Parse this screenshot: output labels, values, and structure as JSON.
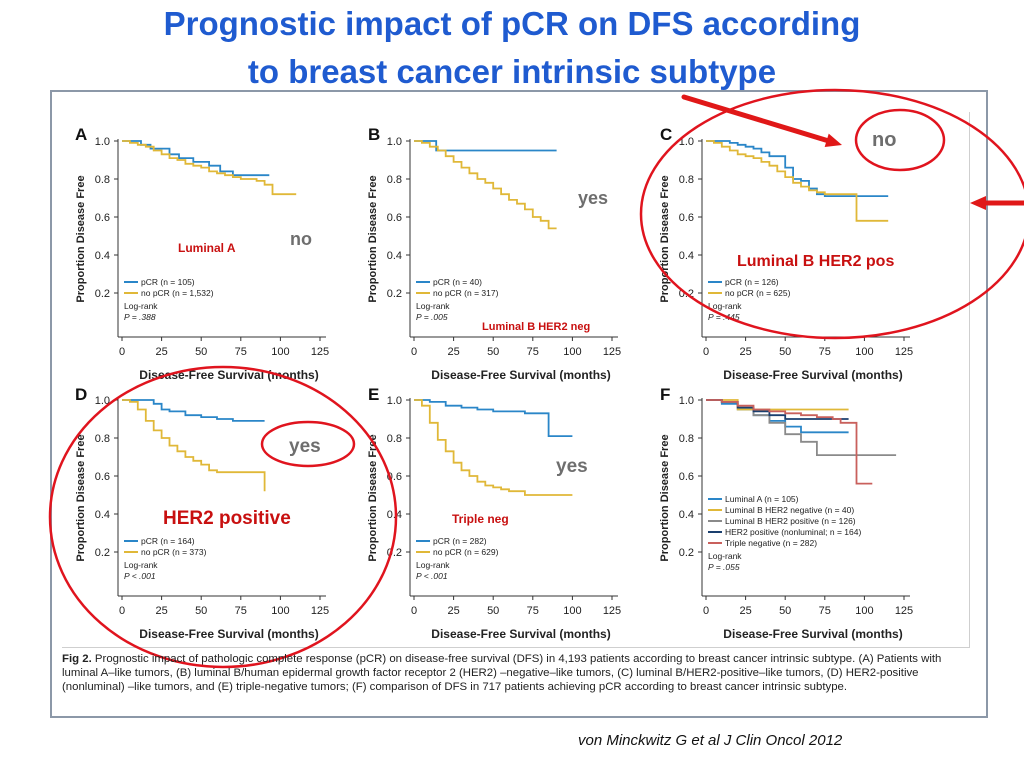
{
  "slide": {
    "title_line1": "Prognostic impact of pCR on DFS according",
    "title_line2": "to breast cancer intrinsic subtype",
    "credit": "von Minckwitz G et al J Clin Oncol 2012",
    "caption_label": "Fig 2.",
    "caption_text": "Prognostic impact of pathologic complete response (pCR) on disease-free survival (DFS) in 4,193 patients according to breast cancer intrinsic subtype. (A) Patients with luminal A–like tumors, (B) luminal B/human epidermal growth factor receptor 2 (HER2) –negative–like tumors, (C) luminal B/HER2-positive–like tumors, (D) HER2-positive (nonluminal) –like tumors, and (E) triple-negative tumors; (F) comparison of DFS in 717 patients achieving pCR according to breast cancer intrinsic subtype."
  },
  "colors": {
    "title": "#1f5bd0",
    "pcr": "#2a86c8",
    "no_pcr": "#e0b838",
    "annotation_red": "#e0141e",
    "subtype_label_red": "#c81010",
    "note_gray": "#6e6e6e",
    "frame": "#8c98a8"
  },
  "chart_data": [
    {
      "panel": "A",
      "type": "line",
      "ylabel": "Proportion Disease Free",
      "xlabel": "Disease-Free Survival (months)",
      "xlim": [
        0,
        125
      ],
      "ylim": [
        0,
        1.0
      ],
      "xticks": [
        0,
        25,
        50,
        75,
        100,
        125
      ],
      "yticks": [
        0.2,
        0.4,
        0.6,
        0.8,
        1.0
      ],
      "series": [
        {
          "name": "pCR (n = 105)",
          "color": "pcr",
          "x": [
            0,
            5,
            12,
            18,
            22,
            30,
            36,
            45,
            55,
            62,
            70,
            80,
            93
          ],
          "y": [
            1.0,
            1.0,
            0.98,
            0.96,
            0.96,
            0.93,
            0.91,
            0.89,
            0.87,
            0.84,
            0.82,
            0.82,
            0.82
          ]
        },
        {
          "name": "no pCR (n = 1,532)",
          "color": "no_pcr",
          "x": [
            0,
            5,
            10,
            15,
            20,
            25,
            30,
            35,
            40,
            45,
            50,
            55,
            60,
            65,
            70,
            75,
            80,
            85,
            90,
            95,
            100,
            110
          ],
          "y": [
            1.0,
            0.99,
            0.98,
            0.97,
            0.95,
            0.93,
            0.91,
            0.9,
            0.88,
            0.87,
            0.86,
            0.84,
            0.83,
            0.82,
            0.81,
            0.8,
            0.8,
            0.79,
            0.77,
            0.72,
            0.72,
            0.72
          ]
        }
      ],
      "logrank": "Log-rank",
      "p": "P = .388",
      "subtype_label": "Luminal A",
      "subtype_label_style": "red_small",
      "annotation": "no"
    },
    {
      "panel": "B",
      "type": "line",
      "ylabel": "Proportion Disease Free",
      "xlabel": "Disease-Free Survival (months)",
      "xlim": [
        0,
        125
      ],
      "ylim": [
        0,
        1.0
      ],
      "xticks": [
        0,
        25,
        50,
        75,
        100,
        125
      ],
      "yticks": [
        0.2,
        0.4,
        0.6,
        0.8,
        1.0
      ],
      "series": [
        {
          "name": "pCR (n = 40)",
          "color": "pcr",
          "x": [
            0,
            10,
            14,
            40,
            70,
            90
          ],
          "y": [
            1.0,
            1.0,
            0.95,
            0.95,
            0.95,
            0.95
          ]
        },
        {
          "name": "no pCR (n = 317)",
          "color": "no_pcr",
          "x": [
            0,
            5,
            10,
            15,
            20,
            25,
            30,
            35,
            40,
            45,
            50,
            55,
            60,
            65,
            70,
            75,
            80,
            85,
            90
          ],
          "y": [
            1.0,
            0.99,
            0.97,
            0.95,
            0.92,
            0.89,
            0.86,
            0.83,
            0.8,
            0.78,
            0.75,
            0.72,
            0.69,
            0.67,
            0.64,
            0.6,
            0.58,
            0.54,
            0.54
          ]
        }
      ],
      "logrank": "Log-rank",
      "p": "P = .005",
      "subtype_label": "Luminal B HER2 neg",
      "subtype_label_style": "red_small",
      "annotation": "yes"
    },
    {
      "panel": "C",
      "type": "line",
      "ylabel": "Proportion Disease Free",
      "xlabel": "Disease-Free Survival (months)",
      "xlim": [
        0,
        125
      ],
      "ylim": [
        0,
        1.0
      ],
      "xticks": [
        0,
        25,
        50,
        75,
        100,
        125
      ],
      "yticks": [
        0.2,
        0.4,
        0.6,
        0.8,
        1.0
      ],
      "series": [
        {
          "name": "pCR (n = 126)",
          "color": "pcr",
          "x": [
            0,
            10,
            15,
            20,
            25,
            30,
            35,
            40,
            50,
            55,
            60,
            65,
            70,
            75,
            80,
            90,
            100,
            110,
            115
          ],
          "y": [
            1.0,
            1.0,
            0.99,
            0.98,
            0.97,
            0.96,
            0.94,
            0.92,
            0.86,
            0.8,
            0.79,
            0.75,
            0.72,
            0.71,
            0.71,
            0.71,
            0.71,
            0.71,
            0.71
          ]
        },
        {
          "name": "no pCR (n = 625)",
          "color": "no_pcr",
          "x": [
            0,
            5,
            10,
            15,
            20,
            25,
            30,
            35,
            40,
            45,
            50,
            55,
            60,
            65,
            70,
            75,
            80,
            85,
            90,
            95,
            100,
            105,
            110,
            115
          ],
          "y": [
            1.0,
            0.99,
            0.97,
            0.95,
            0.93,
            0.92,
            0.91,
            0.89,
            0.87,
            0.84,
            0.81,
            0.78,
            0.76,
            0.74,
            0.73,
            0.72,
            0.72,
            0.72,
            0.72,
            0.58,
            0.58,
            0.58,
            0.58,
            0.58
          ]
        }
      ],
      "logrank": "Log-rank",
      "p": "P = .445",
      "subtype_label": "Luminal B HER2 pos",
      "subtype_label_style": "red_big",
      "annotation": "no"
    },
    {
      "panel": "D",
      "type": "line",
      "ylabel": "Proportion Disease Free",
      "xlabel": "Disease-Free Survival (months)",
      "xlim": [
        0,
        125
      ],
      "ylim": [
        0,
        1.0
      ],
      "xticks": [
        0,
        25,
        50,
        75,
        100,
        125
      ],
      "yticks": [
        0.2,
        0.4,
        0.6,
        0.8,
        1.0
      ],
      "series": [
        {
          "name": "pCR (n = 164)",
          "color": "pcr",
          "x": [
            0,
            10,
            20,
            25,
            30,
            40,
            50,
            60,
            70,
            80,
            90
          ],
          "y": [
            1.0,
            1.0,
            0.98,
            0.95,
            0.94,
            0.92,
            0.91,
            0.9,
            0.89,
            0.89,
            0.89
          ]
        },
        {
          "name": "no pCR (n = 373)",
          "color": "no_pcr",
          "x": [
            0,
            5,
            10,
            15,
            20,
            25,
            30,
            35,
            40,
            45,
            50,
            55,
            60,
            65,
            70,
            75,
            80,
            85,
            90
          ],
          "y": [
            1.0,
            0.99,
            0.95,
            0.89,
            0.84,
            0.8,
            0.76,
            0.73,
            0.7,
            0.68,
            0.66,
            0.63,
            0.62,
            0.62,
            0.62,
            0.62,
            0.62,
            0.62,
            0.52
          ]
        }
      ],
      "logrank": "Log-rank",
      "p": "P < .001",
      "subtype_label": "HER2 positive",
      "subtype_label_style": "red_big",
      "annotation": "yes"
    },
    {
      "panel": "E",
      "type": "line",
      "ylabel": "Proportion Disease Free",
      "xlabel": "Disease-Free Survival (months)",
      "xlim": [
        0,
        125
      ],
      "ylim": [
        0,
        1.0
      ],
      "xticks": [
        0,
        25,
        50,
        75,
        100,
        125
      ],
      "yticks": [
        0.2,
        0.4,
        0.6,
        0.8,
        1.0
      ],
      "series": [
        {
          "name": "pCR (n = 282)",
          "color": "pcr",
          "x": [
            0,
            10,
            20,
            30,
            40,
            50,
            60,
            70,
            75,
            80,
            85,
            90,
            100
          ],
          "y": [
            1.0,
            0.99,
            0.97,
            0.96,
            0.95,
            0.94,
            0.94,
            0.93,
            0.93,
            0.93,
            0.81,
            0.81,
            0.81
          ]
        },
        {
          "name": "no pCR (n = 629)",
          "color": "no_pcr",
          "x": [
            0,
            5,
            10,
            15,
            20,
            25,
            30,
            35,
            40,
            45,
            50,
            55,
            60,
            65,
            70,
            75,
            80,
            90,
            100
          ],
          "y": [
            1.0,
            0.97,
            0.88,
            0.79,
            0.73,
            0.67,
            0.63,
            0.6,
            0.57,
            0.55,
            0.54,
            0.53,
            0.52,
            0.52,
            0.5,
            0.5,
            0.5,
            0.5,
            0.5
          ]
        }
      ],
      "logrank": "Log-rank",
      "p": "P < .001",
      "subtype_label": "Triple neg",
      "subtype_label_style": "red_small",
      "annotation": "yes"
    },
    {
      "panel": "F",
      "type": "line",
      "ylabel": "Proportion Disease Free",
      "xlabel": "Disease-Free Survival (months)",
      "xlim": [
        0,
        125
      ],
      "ylim": [
        0,
        1.0
      ],
      "xticks": [
        0,
        25,
        50,
        75,
        100,
        125
      ],
      "yticks": [
        0.2,
        0.4,
        0.6,
        0.8,
        1.0
      ],
      "series": [
        {
          "name": "Luminal A (n = 105)",
          "color": "#2a86c8",
          "x": [
            0,
            10,
            20,
            30,
            40,
            50,
            60,
            70,
            80,
            85,
            90
          ],
          "y": [
            1.0,
            0.98,
            0.95,
            0.92,
            0.89,
            0.86,
            0.83,
            0.83,
            0.83,
            0.83,
            0.83
          ]
        },
        {
          "name": "Luminal B HER2 negative (n = 40)",
          "color": "#e0b838",
          "x": [
            0,
            10,
            20,
            30,
            40,
            50,
            60,
            70,
            80,
            90
          ],
          "y": [
            1.0,
            1.0,
            0.95,
            0.95,
            0.95,
            0.95,
            0.95,
            0.95,
            0.95,
            0.95
          ]
        },
        {
          "name": "Luminal B HER2 positive (n = 126)",
          "color": "#8a8a8a",
          "x": [
            0,
            10,
            20,
            30,
            40,
            50,
            60,
            70,
            80,
            90,
            100,
            110,
            120
          ],
          "y": [
            1.0,
            0.99,
            0.96,
            0.92,
            0.88,
            0.82,
            0.78,
            0.71,
            0.71,
            0.71,
            0.71,
            0.71,
            0.71
          ]
        },
        {
          "name": "HER2 positive (nonluminal; n = 164)",
          "color": "#1a3f6e",
          "x": [
            0,
            10,
            20,
            30,
            40,
            50,
            60,
            70,
            80,
            90
          ],
          "y": [
            1.0,
            0.99,
            0.96,
            0.94,
            0.92,
            0.9,
            0.9,
            0.9,
            0.9,
            0.9
          ]
        },
        {
          "name": "Triple negative (n = 282)",
          "color": "#c9605c",
          "x": [
            0,
            10,
            20,
            30,
            40,
            50,
            60,
            70,
            80,
            85,
            90,
            95,
            100,
            105
          ],
          "y": [
            1.0,
            0.99,
            0.97,
            0.95,
            0.94,
            0.93,
            0.92,
            0.91,
            0.9,
            0.88,
            0.88,
            0.56,
            0.56,
            0.56
          ]
        }
      ],
      "logrank": "Log-rank",
      "p": "P = .055",
      "subtype_label": "",
      "subtype_label_style": "",
      "annotation": ""
    }
  ]
}
